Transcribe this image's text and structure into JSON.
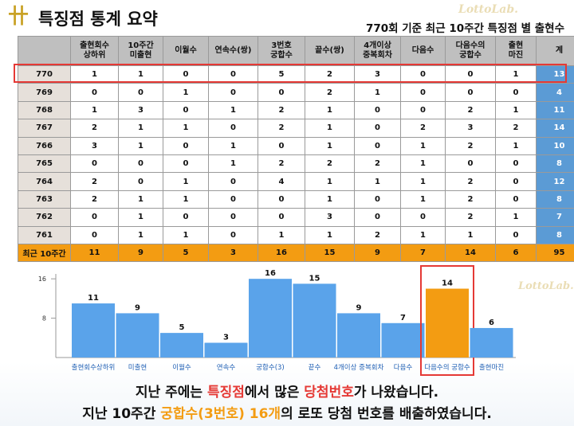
{
  "header": {
    "logo_glyph": "卄",
    "title": "특징점 통계 요약",
    "subtitle": "770회 기준 최근 10주간 특징점 별 출현수",
    "watermark": "LottoLab."
  },
  "table": {
    "columns": [
      "",
      "출현회수\n상하위",
      "10주간\n미출현",
      "이월수",
      "연속수(쌍)",
      "3번호\n궁합수",
      "끝수(쌍)",
      "4개이상\n중복회차",
      "다음수",
      "다음수의\n궁합수",
      "출현\n마진",
      "계"
    ],
    "rows": [
      {
        "draw": "770",
        "values": [
          "1",
          "1",
          "0",
          "0",
          "5",
          "2",
          "3",
          "0",
          "0",
          "1"
        ],
        "total": "13"
      },
      {
        "draw": "769",
        "values": [
          "0",
          "0",
          "1",
          "0",
          "0",
          "2",
          "1",
          "0",
          "0",
          "0"
        ],
        "total": "4"
      },
      {
        "draw": "768",
        "values": [
          "1",
          "3",
          "0",
          "1",
          "2",
          "1",
          "0",
          "0",
          "2",
          "1"
        ],
        "total": "11"
      },
      {
        "draw": "767",
        "values": [
          "2",
          "1",
          "1",
          "0",
          "2",
          "1",
          "0",
          "2",
          "3",
          "2"
        ],
        "total": "14"
      },
      {
        "draw": "766",
        "values": [
          "3",
          "1",
          "0",
          "1",
          "0",
          "1",
          "0",
          "1",
          "2",
          "1"
        ],
        "total": "10"
      },
      {
        "draw": "765",
        "values": [
          "0",
          "0",
          "0",
          "1",
          "2",
          "2",
          "2",
          "1",
          "0",
          "0"
        ],
        "total": "8"
      },
      {
        "draw": "764",
        "values": [
          "2",
          "0",
          "1",
          "0",
          "4",
          "1",
          "1",
          "1",
          "2",
          "0"
        ],
        "total": "12"
      },
      {
        "draw": "763",
        "values": [
          "2",
          "1",
          "1",
          "0",
          "0",
          "1",
          "0",
          "1",
          "2",
          "0"
        ],
        "total": "8"
      },
      {
        "draw": "762",
        "values": [
          "0",
          "1",
          "0",
          "0",
          "0",
          "3",
          "0",
          "0",
          "2",
          "1"
        ],
        "total": "7"
      },
      {
        "draw": "761",
        "values": [
          "0",
          "1",
          "1",
          "0",
          "1",
          "1",
          "2",
          "1",
          "1",
          "0"
        ],
        "total": "8"
      }
    ],
    "footer": {
      "label": "최근 10주간",
      "values": [
        "11",
        "9",
        "5",
        "3",
        "16",
        "15",
        "9",
        "7",
        "14",
        "6"
      ],
      "total": "95"
    }
  },
  "chart_data": {
    "type": "bar",
    "categories": [
      "출현회수상하위",
      "미출현",
      "이월수",
      "연속수",
      "궁합수(3)",
      "끝수",
      "4개이상 중복회차",
      "다음수",
      "다음수의 궁합수",
      "출현마진"
    ],
    "values": [
      11,
      9,
      5,
      3,
      16,
      15,
      9,
      7,
      14,
      6
    ],
    "yticks": [
      8,
      16
    ],
    "ylim": [
      0,
      17
    ],
    "highlight_index": 8,
    "colors": {
      "bar": "#5aa3ea",
      "highlight": "#f39c12",
      "box": "#e53935",
      "label": "#1f5fb4"
    }
  },
  "footer_text": {
    "line1_a": "지난 주에는 ",
    "line1_b": "특징점",
    "line1_c": "에서 많은 ",
    "line1_d": "당첨번호",
    "line1_e": "가 나왔습니다.",
    "line2_a": "지난 10주간 ",
    "line2_b": "궁합수(3번호) 16개",
    "line2_c": "의 로또 당첨 번호를 배출하였습니다."
  }
}
